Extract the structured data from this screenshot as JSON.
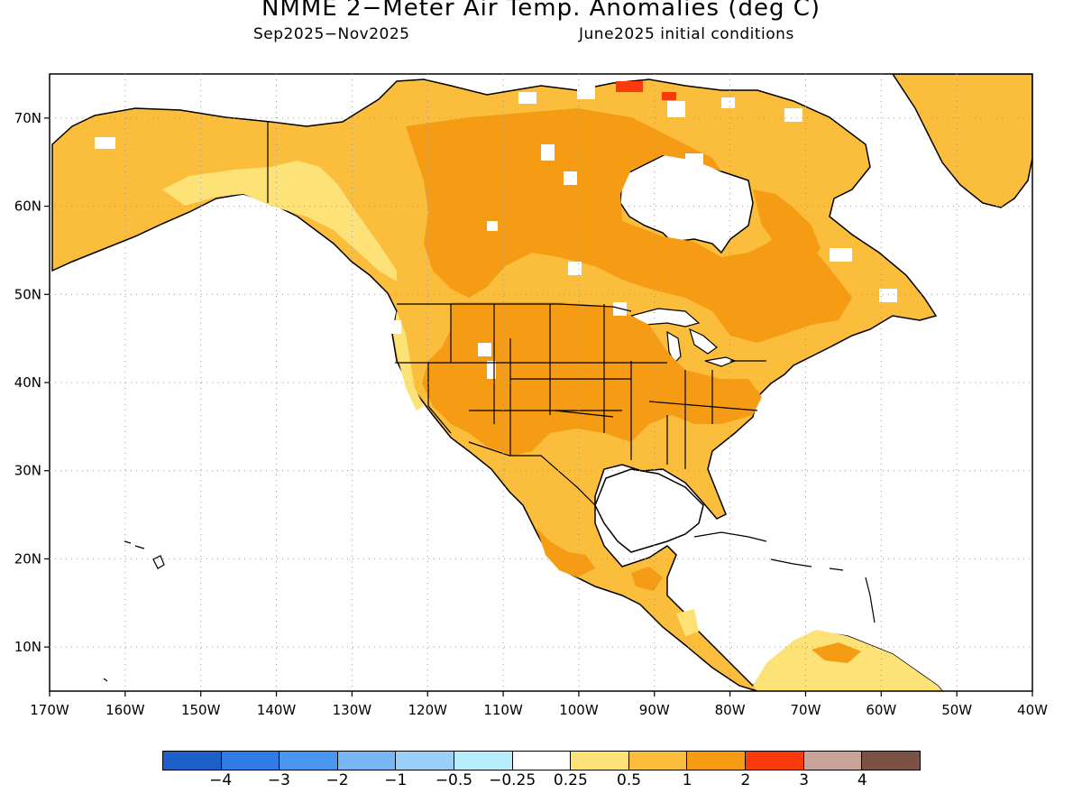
{
  "title": "NMME 2−Meter Air Temp. Anomalies (deg C)",
  "subtitle_period": "Sep2025−Nov2025",
  "subtitle_init": "June2025 initial conditions",
  "map": {
    "lon_range": [
      -170,
      -40
    ],
    "lat_range": [
      5,
      75
    ],
    "grid": "dotted",
    "lon_labels": [
      "170W",
      "160W",
      "150W",
      "140W",
      "130W",
      "120W",
      "110W",
      "100W",
      "90W",
      "80W",
      "70W",
      "60W",
      "50W",
      "40W"
    ],
    "lat_labels": [
      "10N",
      "20N",
      "30N",
      "40N",
      "50N",
      "60N",
      "70N"
    ],
    "region": "North America",
    "dominant_anomaly": "above normal (0.25 to 2 deg C) over most of North America; 2 to 3 deg C in isolated high-Arctic cells"
  },
  "legend": {
    "colors": [
      "#1e5fc8",
      "#2f7ce6",
      "#4896ee",
      "#78b6f5",
      "#9ccff8",
      "#b9ecfb",
      "#ffffff",
      "#fde278",
      "#fbbd3c",
      "#f59b14",
      "#f83a0c",
      "#c9a399",
      "#7b5244"
    ],
    "labels": [
      "−4",
      "−3",
      "−2",
      "−1",
      "−0.5",
      "−0.25",
      "0.25",
      "0.5",
      "1",
      "2",
      "3",
      "4"
    ]
  }
}
